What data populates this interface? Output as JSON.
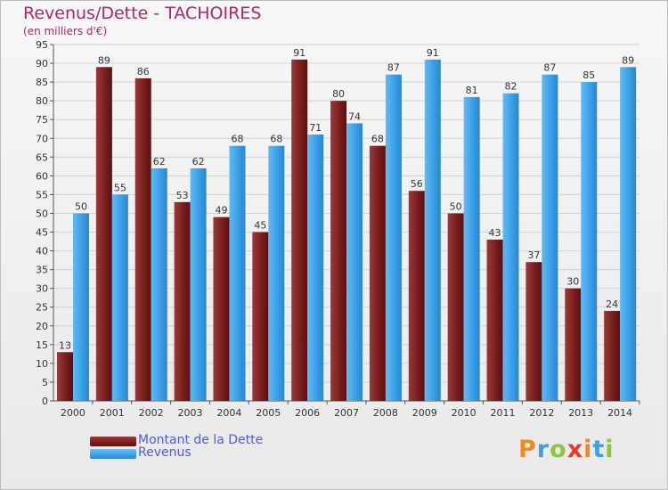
{
  "header": {
    "title": "Revenus/Dette - TACHOIRES",
    "subtitle": "(en milliers d'€)"
  },
  "chart_data": {
    "type": "bar",
    "categories": [
      "2000",
      "2001",
      "2002",
      "2003",
      "2004",
      "2005",
      "2006",
      "2007",
      "2008",
      "2009",
      "2010",
      "2011",
      "2012",
      "2013",
      "2014"
    ],
    "series": [
      {
        "name": "Montant de la Dette",
        "values": [
          13,
          89,
          86,
          53,
          49,
          45,
          91,
          80,
          68,
          56,
          50,
          43,
          37,
          30,
          24
        ],
        "color": "#7a1e1e"
      },
      {
        "name": "Revenus",
        "values": [
          50,
          55,
          62,
          62,
          68,
          68,
          71,
          74,
          87,
          91,
          81,
          82,
          87,
          85,
          89
        ],
        "color": "#3aa0e8"
      }
    ],
    "ylim": [
      0,
      95
    ],
    "ytick_step": 5,
    "grid": true,
    "legend_position": "bottom-left"
  },
  "logo": {
    "letters": [
      "P",
      "r",
      "o",
      "x",
      "i",
      "t",
      "i"
    ],
    "colors": [
      "#f08a1c",
      "#3aa0e8",
      "#8cc63f",
      "#e6392f",
      "#f08a1c",
      "#3aa0e8",
      "#8cc63f"
    ]
  }
}
